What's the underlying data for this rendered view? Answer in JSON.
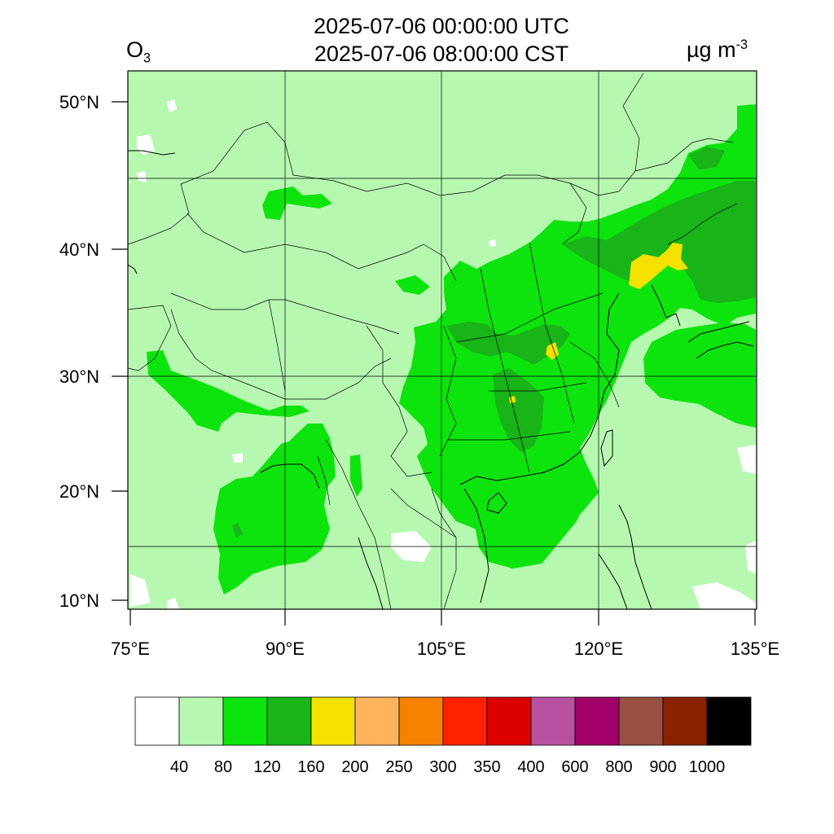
{
  "header": {
    "time_utc": "2025-07-06 00:00:00 UTC",
    "time_cst": "2025-07-06 08:00:00 CST",
    "variable_base": "O",
    "variable_sub": "3",
    "units_base": "µg m",
    "units_sup": "-3"
  },
  "map": {
    "lat_labels": [
      "50°N",
      "40°N",
      "30°N",
      "20°N",
      "10°N"
    ],
    "lon_labels": [
      "75°E",
      "90°E",
      "105°E",
      "120°E",
      "135°E"
    ]
  },
  "colorbar": {
    "labels": [
      "40",
      "80",
      "120",
      "160",
      "200",
      "250",
      "300",
      "350",
      "400",
      "600",
      "800",
      "900",
      "1000"
    ],
    "colors": [
      "#ffffff",
      "#b6f8b0",
      "#0de30d",
      "#18b418",
      "#f5e100",
      "#ffb45c",
      "#f68200",
      "#ff2000",
      "#dd0000",
      "#b8519f",
      "#a00068",
      "#985040",
      "#8a2200",
      "#000000"
    ]
  },
  "colors": {
    "background_field": "#b6f8b0",
    "level_80_120": "#0de30d",
    "level_120_160": "#18b418",
    "level_160_200": "#f5e100"
  }
}
